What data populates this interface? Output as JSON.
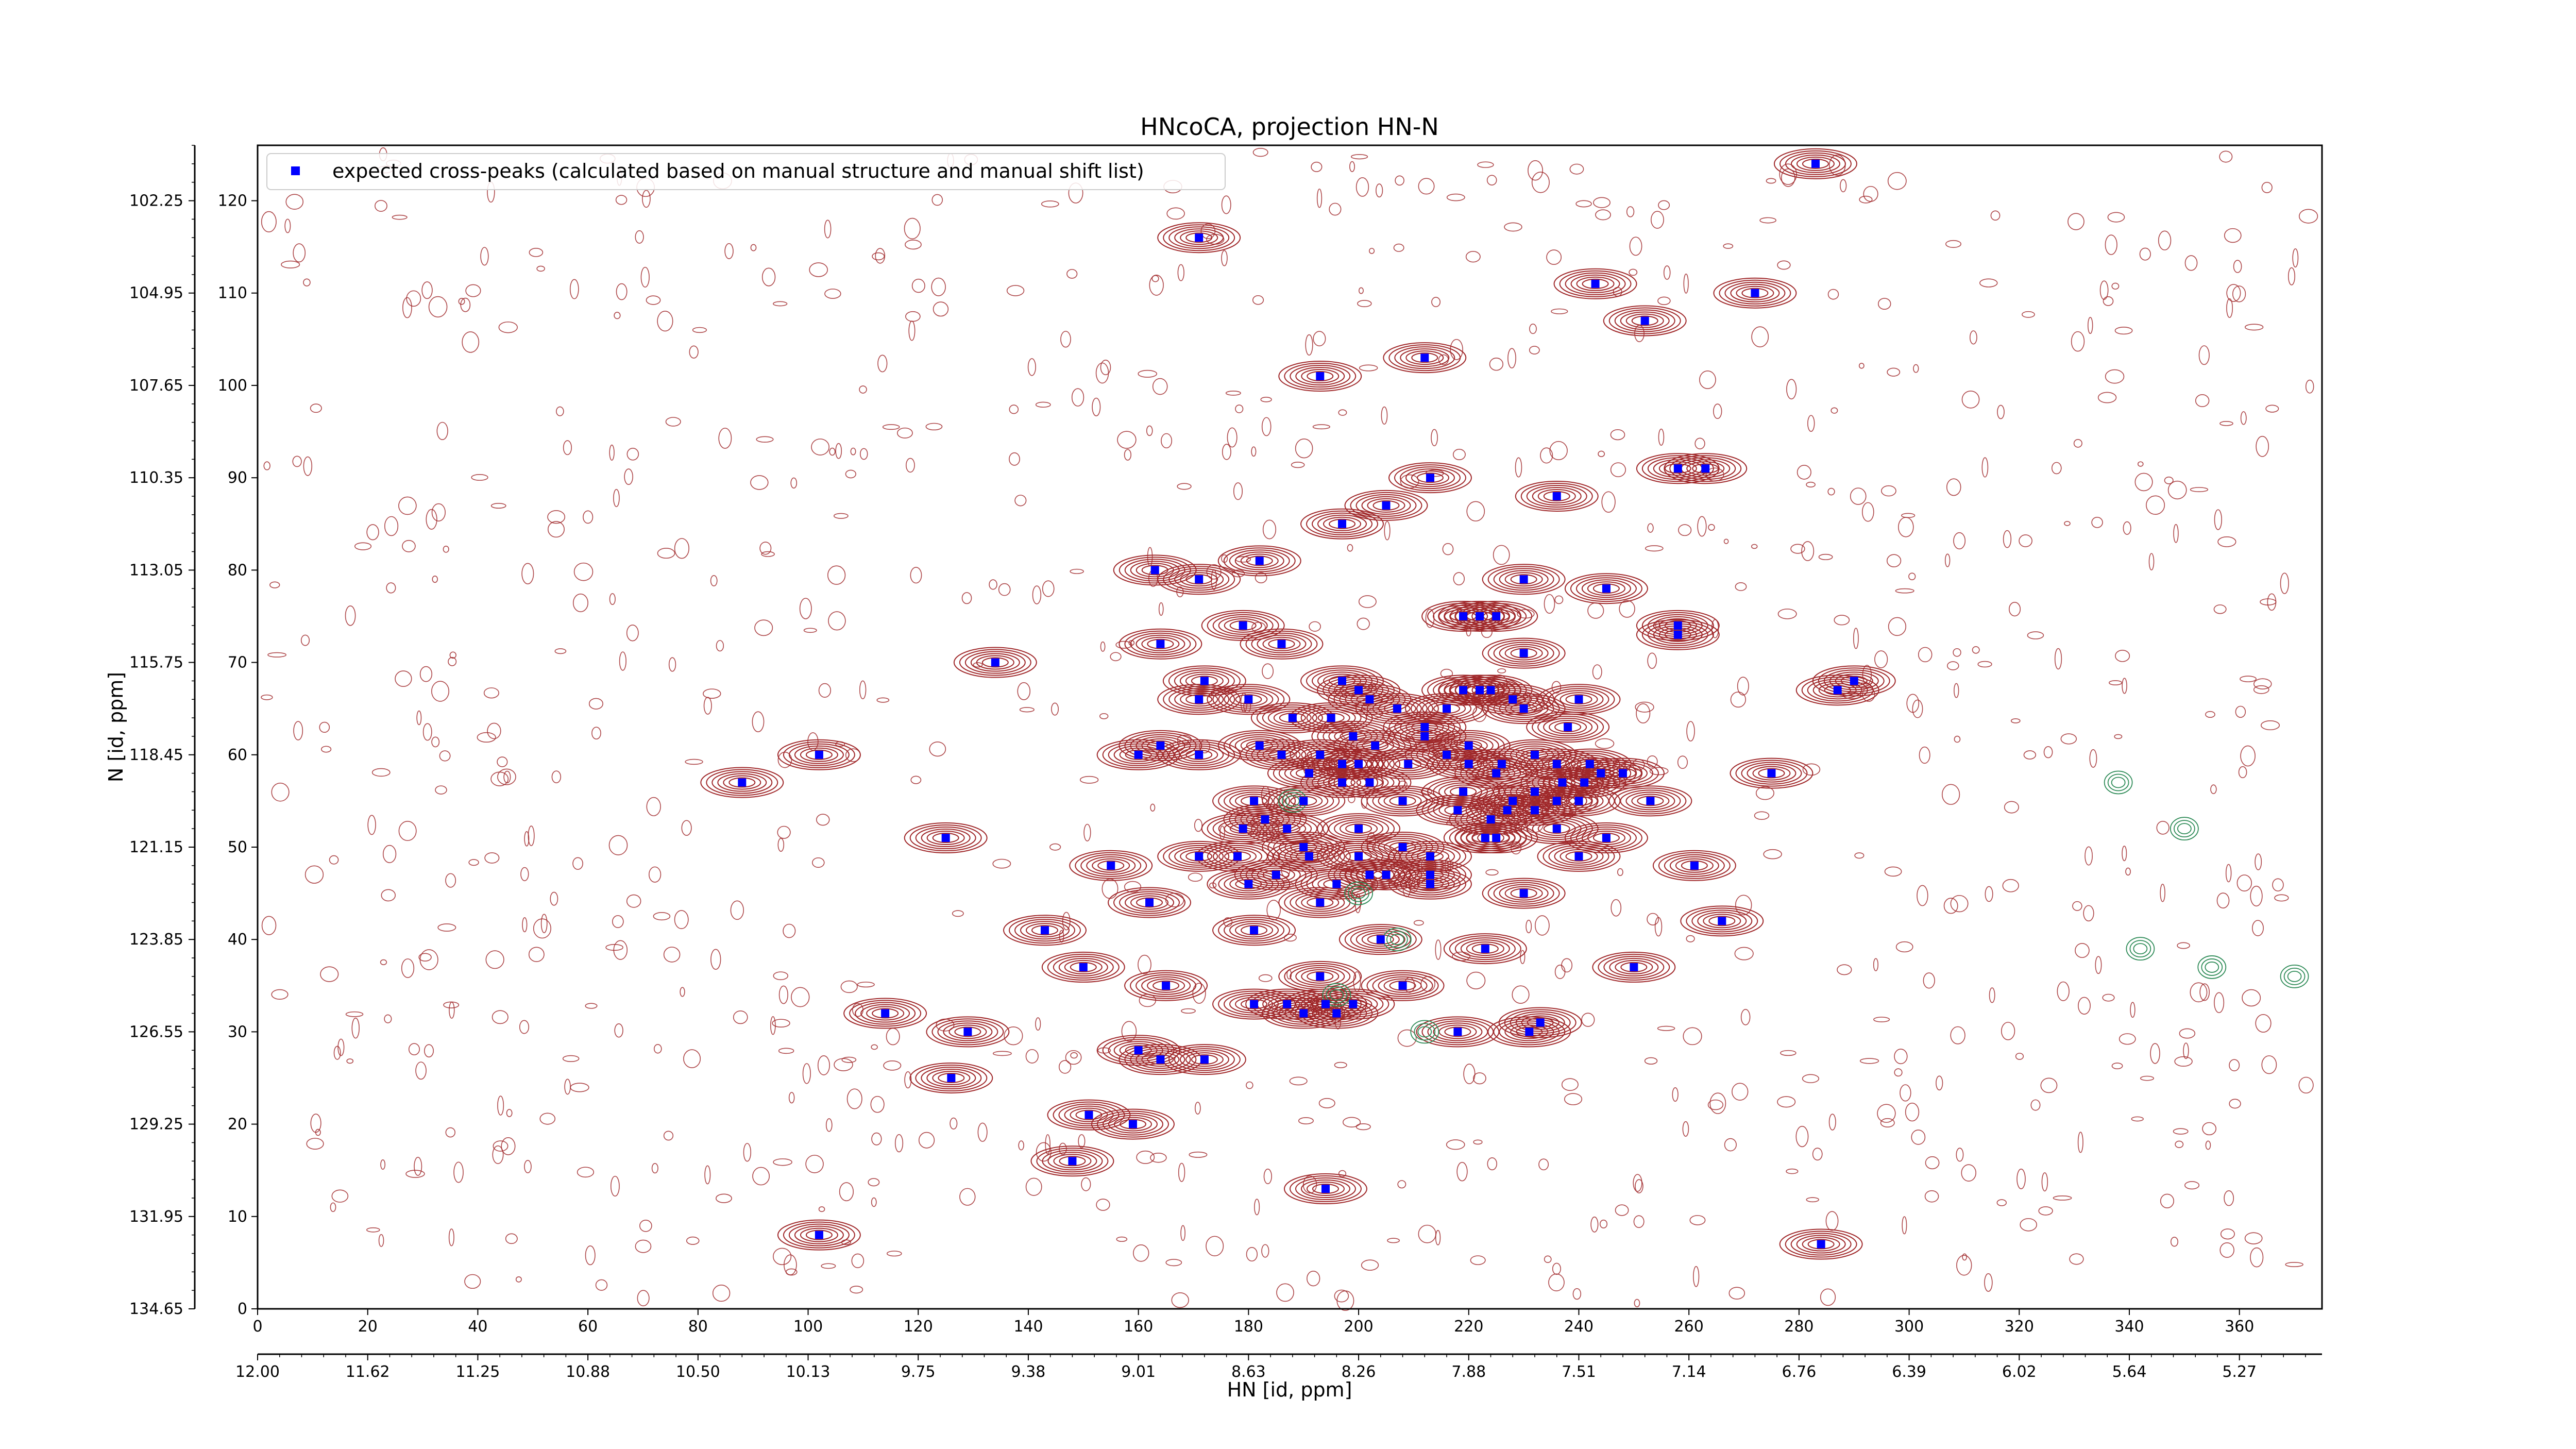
{
  "chart_data": {
    "type": "scatter",
    "title": "HNcoCA, projection HN-N",
    "xlabel": "HN [id, ppm]",
    "ylabel": "N [id, ppm]",
    "x_index_range": [
      0,
      375
    ],
    "y_index_range": [
      0,
      126
    ],
    "x_index_ticks": [
      "0",
      "20",
      "40",
      "60",
      "80",
      "100",
      "120",
      "140",
      "160",
      "180",
      "200",
      "220",
      "240",
      "260",
      "280",
      "300",
      "320",
      "340",
      "360"
    ],
    "x_ppm_ticks": [
      "12.00",
      "11.62",
      "11.25",
      "10.88",
      "10.50",
      "10.13",
      "9.75",
      "9.38",
      "9.01",
      "8.63",
      "8.26",
      "7.88",
      "7.51",
      "7.14",
      "6.76",
      "6.39",
      "6.02",
      "5.64",
      "5.27"
    ],
    "y_index_ticks": [
      "0",
      "10",
      "20",
      "30",
      "40",
      "50",
      "60",
      "70",
      "80",
      "90",
      "100",
      "110",
      "120"
    ],
    "y_ppm_ticks": [
      "134.65",
      "131.95",
      "129.25",
      "126.55",
      "123.85",
      "121.15",
      "118.45",
      "115.75",
      "113.05",
      "110.35",
      "107.65",
      "104.95",
      "102.25"
    ],
    "legend": {
      "placement": "top-left",
      "entries": [
        "expected cross-peaks (calculated based on manual structure and manual shift list)"
      ]
    },
    "colors": {
      "marker": "#0000ff",
      "positive_contour": "#a0282a",
      "negative_contour": "#2e8b57"
    },
    "series": [
      {
        "name": "expected cross-peaks (calculated based on manual structure and manual shift list)",
        "points": [
          [
            283,
            124
          ],
          [
            171,
            116
          ],
          [
            243,
            111
          ],
          [
            252,
            107
          ],
          [
            272,
            110
          ],
          [
            212,
            103
          ],
          [
            193,
            101
          ],
          [
            258,
            91
          ],
          [
            263,
            91
          ],
          [
            213,
            90
          ],
          [
            205,
            87
          ],
          [
            197,
            85
          ],
          [
            236,
            88
          ],
          [
            182,
            81
          ],
          [
            163,
            80
          ],
          [
            171,
            79
          ],
          [
            230,
            79
          ],
          [
            245,
            78
          ],
          [
            219,
            75
          ],
          [
            222,
            75
          ],
          [
            225,
            75
          ],
          [
            258,
            74
          ],
          [
            258,
            73
          ],
          [
            179,
            74
          ],
          [
            164,
            72
          ],
          [
            186,
            72
          ],
          [
            134,
            70
          ],
          [
            230,
            71
          ],
          [
            172,
            68
          ],
          [
            197,
            68
          ],
          [
            290,
            68
          ],
          [
            171,
            66
          ],
          [
            180,
            66
          ],
          [
            200,
            67
          ],
          [
            219,
            67
          ],
          [
            222,
            67
          ],
          [
            202,
            66
          ],
          [
            207,
            65
          ],
          [
            216,
            65
          ],
          [
            224,
            67
          ],
          [
            228,
            66
          ],
          [
            230,
            65
          ],
          [
            240,
            66
          ],
          [
            287,
            67
          ],
          [
            212,
            63
          ],
          [
            212,
            62
          ],
          [
            188,
            64
          ],
          [
            195,
            64
          ],
          [
            199,
            62
          ],
          [
            238,
            63
          ],
          [
            203,
            61
          ],
          [
            220,
            61
          ],
          [
            182,
            61
          ],
          [
            164,
            61
          ],
          [
            171,
            60
          ],
          [
            160,
            60
          ],
          [
            186,
            60
          ],
          [
            193,
            60
          ],
          [
            232,
            60
          ],
          [
            220,
            59
          ],
          [
            226,
            59
          ],
          [
            236,
            59
          ],
          [
            242,
            59
          ],
          [
            197,
            59
          ],
          [
            200,
            59
          ],
          [
            209,
            59
          ],
          [
            216,
            60
          ],
          [
            244,
            58
          ],
          [
            248,
            58
          ],
          [
            225,
            58
          ],
          [
            237,
            57
          ],
          [
            275,
            58
          ],
          [
            102,
            60
          ],
          [
            88,
            57
          ],
          [
            191,
            58
          ],
          [
            202,
            57
          ],
          [
            197,
            57
          ],
          [
            219,
            56
          ],
          [
            232,
            56
          ],
          [
            241,
            57
          ],
          [
            240,
            55
          ],
          [
            236,
            55
          ],
          [
            208,
            55
          ],
          [
            227,
            54
          ],
          [
            181,
            55
          ],
          [
            190,
            55
          ],
          [
            232,
            54
          ],
          [
            228,
            55
          ],
          [
            253,
            55
          ],
          [
            218,
            54
          ],
          [
            179,
            52
          ],
          [
            236,
            52
          ],
          [
            245,
            51
          ],
          [
            224,
            53
          ],
          [
            183,
            53
          ],
          [
            187,
            52
          ],
          [
            200,
            52
          ],
          [
            225,
            51
          ],
          [
            223,
            51
          ],
          [
            125,
            51
          ],
          [
            171,
            49
          ],
          [
            178,
            49
          ],
          [
            190,
            50
          ],
          [
            191,
            49
          ],
          [
            200,
            49
          ],
          [
            208,
            50
          ],
          [
            213,
            49
          ],
          [
            240,
            49
          ],
          [
            261,
            48
          ],
          [
            155,
            48
          ],
          [
            202,
            47
          ],
          [
            205,
            47
          ],
          [
            185,
            47
          ],
          [
            196,
            46
          ],
          [
            213,
            47
          ],
          [
            213,
            46
          ],
          [
            230,
            45
          ],
          [
            162,
            44
          ],
          [
            180,
            46
          ],
          [
            193,
            44
          ],
          [
            266,
            42
          ],
          [
            143,
            41
          ],
          [
            181,
            41
          ],
          [
            204,
            40
          ],
          [
            223,
            39
          ],
          [
            250,
            37
          ],
          [
            150,
            37
          ],
          [
            193,
            36
          ],
          [
            165,
            35
          ],
          [
            208,
            35
          ],
          [
            181,
            33
          ],
          [
            187,
            33
          ],
          [
            194,
            33
          ],
          [
            199,
            33
          ],
          [
            190,
            32
          ],
          [
            196,
            32
          ],
          [
            114,
            32
          ],
          [
            129,
            30
          ],
          [
            231,
            30
          ],
          [
            233,
            31
          ],
          [
            218,
            30
          ],
          [
            160,
            28
          ],
          [
            164,
            27
          ],
          [
            172,
            27
          ],
          [
            126,
            25
          ],
          [
            151,
            21
          ],
          [
            159,
            20
          ],
          [
            148,
            16
          ],
          [
            194,
            13
          ],
          [
            102,
            8
          ],
          [
            284,
            7
          ]
        ]
      }
    ]
  }
}
